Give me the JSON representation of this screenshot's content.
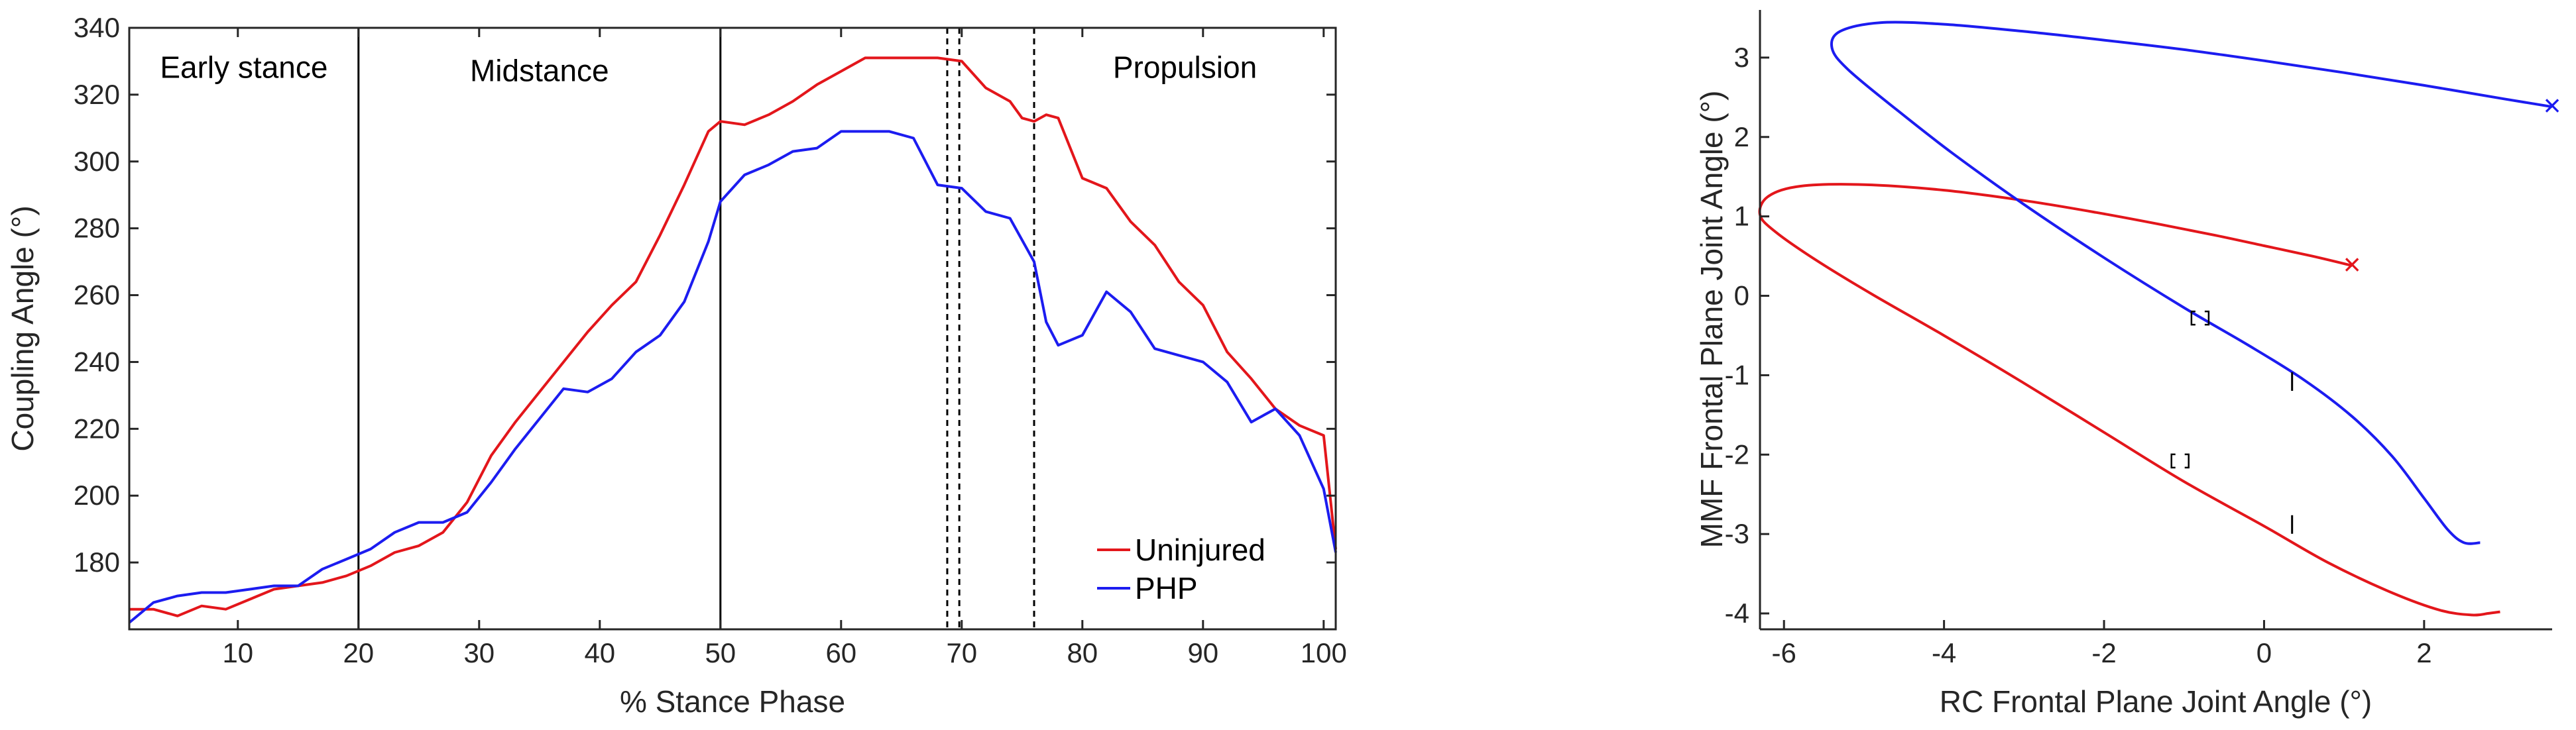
{
  "chart_data": [
    {
      "type": "line",
      "title": "",
      "xlabel": "% Stance Phase",
      "ylabel": "Coupling Angle (°)",
      "xlim": [
        1,
        101
      ],
      "ylim": [
        160,
        340
      ],
      "xticks": [
        10,
        20,
        30,
        40,
        50,
        60,
        70,
        80,
        90,
        100
      ],
      "yticks": [
        180,
        200,
        220,
        240,
        260,
        280,
        300,
        320,
        340
      ],
      "phase_lines_solid": [
        20,
        50
      ],
      "phase_lines_dashed": [
        68.8,
        69.8,
        76
      ],
      "phase_labels": [
        {
          "text": "Early stance",
          "x": 10.5,
          "y": 328
        },
        {
          "text": "Midstance",
          "x": 35,
          "y": 327
        },
        {
          "text": "Propulsion",
          "x": 88.5,
          "y": 328
        }
      ],
      "legend": [
        "Uninjured",
        "PHP"
      ],
      "series": [
        {
          "name": "Uninjured",
          "color": "#e3161b",
          "x": [
            1,
            3,
            5,
            7,
            9,
            11,
            13,
            15,
            17,
            19,
            21,
            23,
            25,
            27,
            29,
            31,
            33,
            35,
            37,
            39,
            41,
            43,
            45,
            47,
            49,
            50,
            52,
            54,
            56,
            58,
            60,
            62,
            64,
            66,
            68,
            70,
            72,
            74,
            75,
            76,
            77,
            78,
            80,
            82,
            84,
            86,
            88,
            90,
            92,
            94,
            96,
            98,
            100,
            101
          ],
          "y": [
            166,
            166,
            164,
            167,
            166,
            169,
            172,
            173,
            174,
            176,
            179,
            183,
            185,
            189,
            198,
            212,
            222,
            231,
            240,
            249,
            257,
            264,
            278,
            293,
            309,
            312,
            311,
            314,
            318,
            323,
            327,
            331,
            331,
            331,
            331,
            330,
            322,
            318,
            313,
            312,
            314,
            313,
            295,
            292,
            282,
            275,
            264,
            257,
            243,
            235,
            226,
            221,
            218,
            184
          ]
        },
        {
          "name": "PHP",
          "color": "#1c1cf0",
          "x": [
            1,
            3,
            5,
            7,
            9,
            11,
            13,
            15,
            17,
            19,
            21,
            23,
            25,
            27,
            29,
            31,
            33,
            35,
            37,
            39,
            41,
            43,
            45,
            47,
            49,
            50,
            52,
            54,
            56,
            58,
            60,
            62,
            64,
            66,
            68,
            70,
            72,
            74,
            76,
            77,
            78,
            80,
            82,
            84,
            86,
            88,
            90,
            92,
            94,
            96,
            98,
            100,
            101
          ],
          "y": [
            162,
            168,
            170,
            171,
            171,
            172,
            173,
            173,
            178,
            181,
            184,
            189,
            192,
            192,
            195,
            204,
            214,
            223,
            232,
            231,
            235,
            243,
            248,
            258,
            276,
            288,
            296,
            299,
            303,
            304,
            309,
            309,
            309,
            307,
            293,
            292,
            285,
            283,
            270,
            252,
            245,
            248,
            261,
            255,
            244,
            242,
            240,
            234,
            222,
            226,
            218,
            202,
            183
          ]
        }
      ]
    },
    {
      "type": "line",
      "title": "",
      "xlabel": "RC Frontal Plane Joint Angle (°)",
      "ylabel": "MMF Frontal Plane Joint Angle (°)",
      "xlim": [
        -6.3,
        3.6
      ],
      "ylim": [
        -4.2,
        3.6
      ],
      "xticks": [
        -6,
        -4,
        -2,
        0,
        2
      ],
      "yticks": [
        -4,
        -3,
        -2,
        -1,
        0,
        1,
        2,
        3
      ],
      "series": [
        {
          "name": "Red",
          "color": "#e3161b",
          "x": [
            1.1,
            0.6,
            0.0,
            -0.6,
            -1.3,
            -2.1,
            -3.0,
            -4.0,
            -5.0,
            -5.8,
            -6.2,
            -6.3,
            -6.1,
            -5.6,
            -4.9,
            -4.0,
            -3.0,
            -2.0,
            -1.0,
            0.0,
            0.8,
            1.6,
            2.2,
            2.6,
            2.8,
            2.95
          ],
          "y": [
            0.38,
            0.5,
            0.63,
            0.76,
            0.9,
            1.05,
            1.2,
            1.33,
            1.4,
            1.38,
            1.25,
            1.02,
            0.8,
            0.45,
            0.02,
            -0.5,
            -1.1,
            -1.72,
            -2.34,
            -2.9,
            -3.36,
            -3.74,
            -3.96,
            -4.02,
            -4.0,
            -3.98
          ]
        },
        {
          "name": "Blue",
          "color": "#1c1cf0",
          "x": [
            3.6,
            3.0,
            2.0,
            1.0,
            0.0,
            -1.0,
            -2.0,
            -3.0,
            -4.0,
            -4.8,
            -5.3,
            -5.4,
            -5.2,
            -4.6,
            -3.9,
            -3.0,
            -2.0,
            -1.0,
            -0.2,
            0.5,
            1.1,
            1.6,
            2.0,
            2.3,
            2.5,
            2.7
          ],
          "y": [
            2.38,
            2.48,
            2.65,
            2.81,
            2.96,
            3.1,
            3.22,
            3.33,
            3.42,
            3.44,
            3.33,
            3.12,
            2.85,
            2.35,
            1.8,
            1.15,
            0.48,
            -0.15,
            -0.62,
            -1.06,
            -1.52,
            -2.02,
            -2.55,
            -2.95,
            -3.11,
            -3.11
          ]
        }
      ],
      "end_markers": [
        {
          "x": 1.1,
          "y": 0.38,
          "color": "#e3161b",
          "symbol": "×"
        },
        {
          "x": 3.6,
          "y": 2.38,
          "color": "#1c1cf0",
          "symbol": "×"
        }
      ],
      "black_markers": [
        {
          "x": -0.8,
          "y": -0.28,
          "symbol": "bracket"
        },
        {
          "x": 0.35,
          "y": -1.08,
          "symbol": "bar"
        },
        {
          "x": -1.05,
          "y": -2.08,
          "symbol": "bracket"
        },
        {
          "x": 0.35,
          "y": -2.88,
          "symbol": "bar"
        }
      ]
    }
  ]
}
